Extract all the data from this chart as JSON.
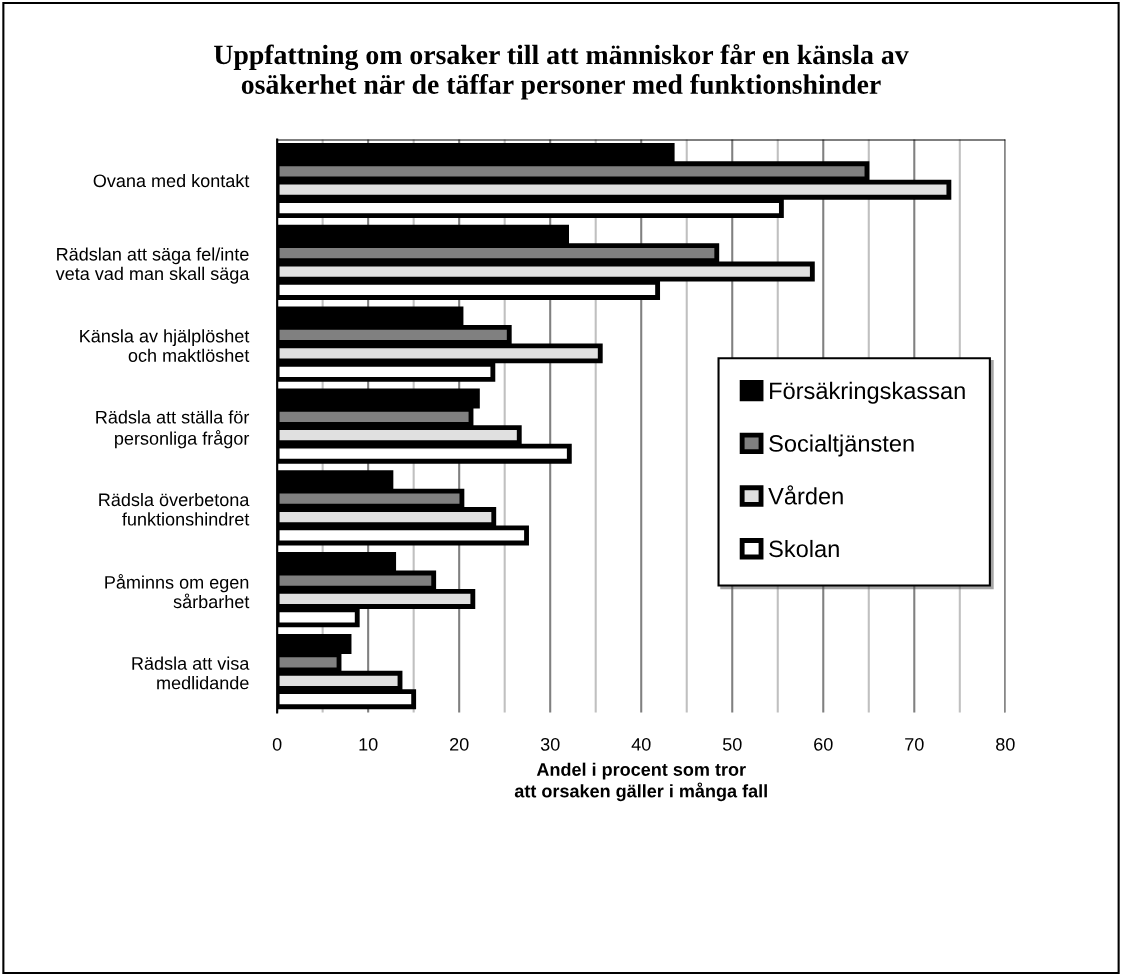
{
  "chart_data": {
    "type": "bar",
    "orientation": "horizontal",
    "title": "Uppfattning om orsaker till att människor får en känsla av\nosäkerhet när de täffar personer med funktionshinder",
    "xlabel": "Andel i procent som tror\natt orsaken gäller i många fall",
    "categories": [
      "Ovana med kontakt",
      "Rädslan att säga fel/inte\nveta vad man skall säga",
      "Känsla av hjälplöshet\noch maktlöshet",
      "Rädsla att ställa för\npersonliga frågor",
      "Rädsla överbetona\nfunktionshindret",
      "Påminns om egen\nsårbarhet",
      "Rädsla att visa\nmedlidande"
    ],
    "series": [
      {
        "name": "Försäkringskassan",
        "color": "#000000",
        "values": [
          43.4,
          31.8,
          20.2,
          22.0,
          12.5,
          12.8,
          7.9
        ]
      },
      {
        "name": "Socialtjänsten",
        "color": "#808080",
        "values": [
          64.8,
          48.3,
          25.5,
          21.3,
          20.3,
          17.2,
          6.8
        ]
      },
      {
        "name": "Vården",
        "color": "#e0e0e0",
        "values": [
          73.8,
          58.8,
          35.5,
          26.6,
          23.8,
          21.5,
          13.5
        ]
      },
      {
        "name": "Skolan",
        "color": "#ffffff",
        "values": [
          55.4,
          41.8,
          23.7,
          32.1,
          27.4,
          8.8,
          15.0
        ]
      }
    ],
    "xlim": [
      0,
      80
    ],
    "xticks": [
      0,
      10,
      20,
      30,
      40,
      50,
      60,
      70,
      80
    ],
    "grid": "x",
    "legend": "right"
  }
}
